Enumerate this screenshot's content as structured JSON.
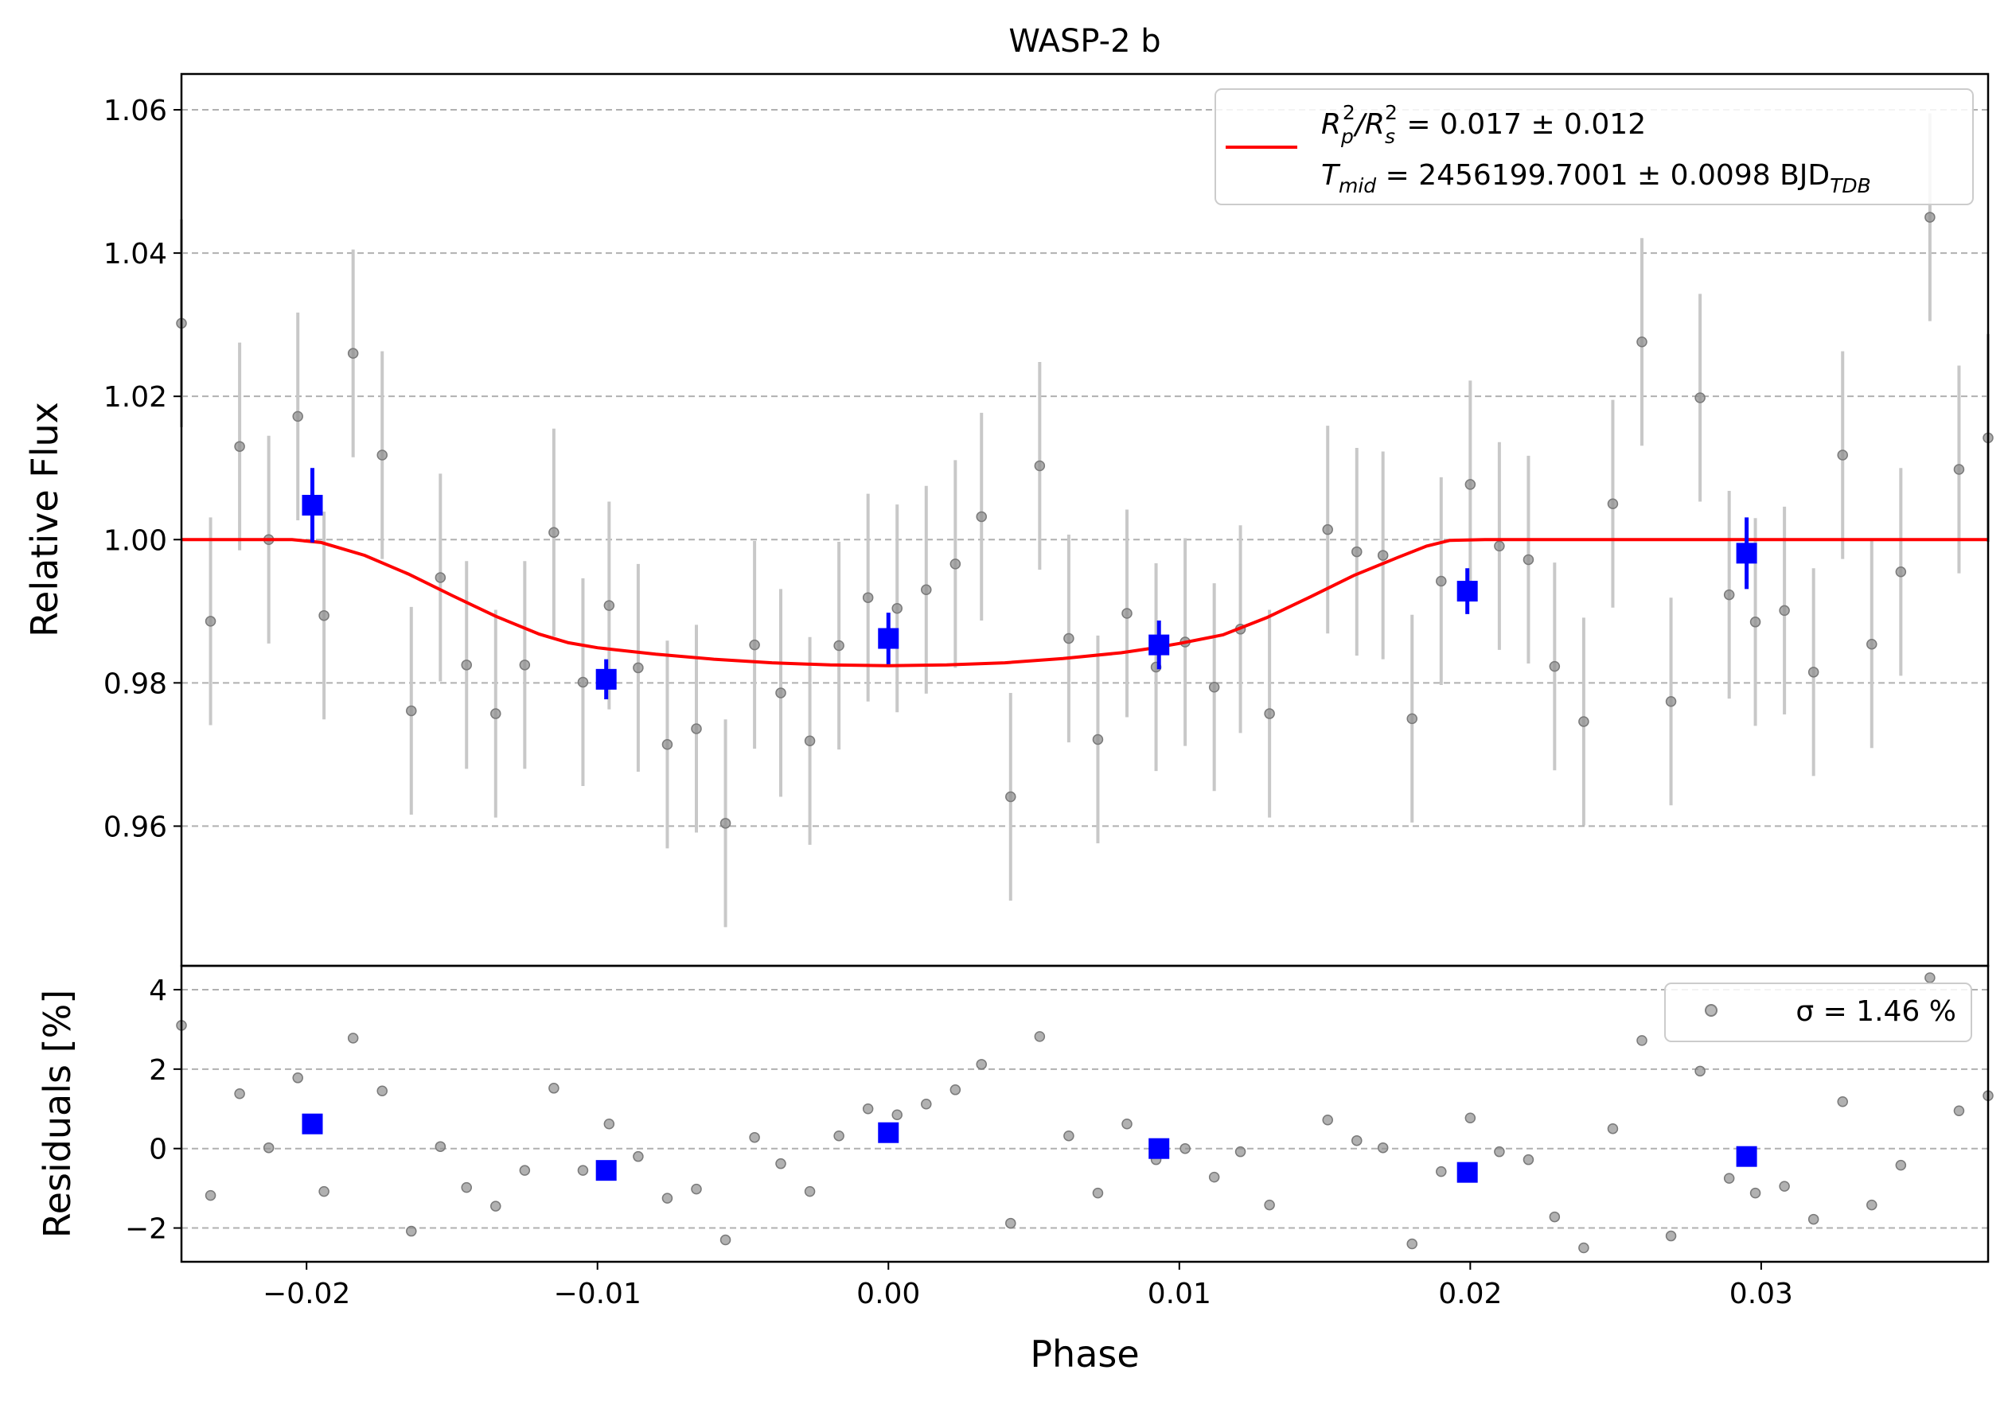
{
  "chart_data": [
    {
      "type": "scatter",
      "title": "WASP-2 b",
      "xlabel": "",
      "ylabel": "Relative Flux",
      "xlim": [
        -0.0243,
        0.0378
      ],
      "ylim": [
        0.9405,
        1.065
      ],
      "grid": "horizontal dashed",
      "legend_position": "top-right",
      "legend": {
        "line1": {
          "prefix": "R",
          "sub1": "p",
          "sup1": "2",
          "slash": "/R",
          "sub2": "s",
          "sup2": "2",
          "rest": " = 0.017 ± 0.012"
        },
        "line2": {
          "prefix": "T",
          "sub1": "mid",
          "rest": " = 2456199.7001 ± 0.0098 BJD",
          "sub2": "TDB"
        }
      },
      "yticks": [
        {
          "value": 0.96,
          "label": "0.96"
        },
        {
          "value": 0.98,
          "label": "0.98"
        },
        {
          "value": 1.0,
          "label": "1.00"
        },
        {
          "value": 1.02,
          "label": "1.02"
        },
        {
          "value": 1.04,
          "label": "1.04"
        },
        {
          "value": 1.06,
          "label": "1.06"
        }
      ],
      "series": [
        {
          "style": "gray points with error bars",
          "color": "#808080",
          "error": 0.0145,
          "x": [
            -0.0243,
            -0.0233,
            -0.0223,
            -0.0213,
            -0.0203,
            -0.0194,
            -0.0184,
            -0.0174,
            -0.0164,
            -0.0154,
            -0.0145,
            -0.0135,
            -0.0125,
            -0.0115,
            -0.0105,
            -0.0096,
            -0.0086,
            -0.0076,
            -0.0066,
            -0.0056,
            -0.0046,
            -0.0037,
            -0.0027,
            -0.0017,
            -0.0007,
            0.0003,
            0.0013,
            0.0023,
            0.0032,
            0.0042,
            0.0052,
            0.0062,
            0.0072,
            0.0082,
            0.0092,
            0.0102,
            0.0112,
            0.0121,
            0.0131,
            0.0151,
            0.0161,
            0.017,
            0.018,
            0.019,
            0.02,
            0.021,
            0.022,
            0.0229,
            0.0239,
            0.0249,
            0.0259,
            0.0269,
            0.0279,
            0.0289,
            0.0298,
            0.0308,
            0.0318,
            0.0328,
            0.0338,
            0.0348,
            0.0358,
            0.0368,
            0.0378
          ],
          "y": [
            1.0302,
            0.9886,
            1.013,
            1.0,
            1.0172,
            0.9894,
            1.026,
            1.0118,
            0.9761,
            0.9947,
            0.9825,
            0.9757,
            0.9825,
            1.001,
            0.9801,
            0.9908,
            0.9821,
            0.9714,
            0.9736,
            0.9604,
            0.9853,
            0.9786,
            0.9719,
            0.9852,
            0.9919,
            0.9904,
            0.993,
            0.9966,
            1.0032,
            0.9641,
            1.0103,
            0.9862,
            0.9721,
            0.9897,
            0.9822,
            0.9857,
            0.9794,
            0.9875,
            0.9757,
            1.0014,
            0.9983,
            0.9978,
            0.975,
            0.9942,
            1.0077,
            0.9991,
            0.9972,
            0.9823,
            0.9746,
            1.005,
            1.0276,
            0.9774,
            1.0198,
            0.9923,
            0.9885,
            0.9901,
            0.9815,
            1.0118,
            0.9854,
            0.9955,
            1.045,
            1.0098,
            1.0142
          ]
        },
        {
          "style": "blue binned squares with error bars",
          "color": "#0000ff",
          "x": [
            -0.0198,
            -0.0097,
            0.0,
            0.0093,
            0.0199,
            0.0295
          ],
          "y": [
            1.0048,
            0.9805,
            0.9862,
            0.9853,
            0.9928,
            0.9981
          ],
          "error": [
            0.0052,
            0.0028,
            0.0036,
            0.0034,
            0.0032,
            0.005
          ]
        },
        {
          "style": "red model line",
          "color": "#ff0000",
          "x": [
            -0.0243,
            -0.0205,
            -0.0195,
            -0.018,
            -0.0165,
            -0.015,
            -0.0135,
            -0.012,
            -0.011,
            -0.01,
            -0.008,
            -0.006,
            -0.004,
            -0.002,
            0.0,
            0.002,
            0.004,
            0.006,
            0.008,
            0.009,
            0.01,
            0.0115,
            0.013,
            0.0145,
            0.016,
            0.0175,
            0.0185,
            0.0193,
            0.0205,
            0.0378
          ],
          "y": [
            1.0,
            1.0,
            0.9996,
            0.9978,
            0.9952,
            0.9922,
            0.9893,
            0.9868,
            0.9856,
            0.9849,
            0.984,
            0.9833,
            0.9828,
            0.9825,
            0.9824,
            0.9825,
            0.9828,
            0.9834,
            0.9842,
            0.9848,
            0.9855,
            0.9867,
            0.9891,
            0.992,
            0.995,
            0.9975,
            0.9991,
            0.9999,
            1.0,
            1.0
          ]
        }
      ]
    },
    {
      "type": "scatter",
      "title": "",
      "xlabel": "Phase",
      "ylabel": "Residuals [%]",
      "xlim": [
        -0.0243,
        0.0378
      ],
      "ylim": [
        -2.85,
        4.6
      ],
      "grid": "horizontal dashed",
      "legend_position": "top-right",
      "legend": {
        "label": "σ = 1.46 %"
      },
      "xticks": [
        {
          "value": -0.02,
          "label": "−0.02"
        },
        {
          "value": -0.01,
          "label": "−0.01"
        },
        {
          "value": 0.0,
          "label": "0.00"
        },
        {
          "value": 0.01,
          "label": "0.01"
        },
        {
          "value": 0.02,
          "label": "0.02"
        },
        {
          "value": 0.03,
          "label": "0.03"
        }
      ],
      "yticks": [
        {
          "value": -2,
          "label": "−2"
        },
        {
          "value": 0,
          "label": "0"
        },
        {
          "value": 2,
          "label": "2"
        },
        {
          "value": 4,
          "label": "4"
        }
      ],
      "series": [
        {
          "style": "gray residual points",
          "color": "#808080",
          "x": [
            -0.0243,
            -0.0233,
            -0.0223,
            -0.0213,
            -0.0203,
            -0.0194,
            -0.0184,
            -0.0174,
            -0.0164,
            -0.0154,
            -0.0145,
            -0.0135,
            -0.0125,
            -0.0115,
            -0.0105,
            -0.0096,
            -0.0086,
            -0.0076,
            -0.0066,
            -0.0056,
            -0.0046,
            -0.0037,
            -0.0027,
            -0.0017,
            -0.0007,
            0.0003,
            0.0013,
            0.0023,
            0.0032,
            0.0042,
            0.0052,
            0.0062,
            0.0072,
            0.0082,
            0.0092,
            0.0102,
            0.0112,
            0.0121,
            0.0131,
            0.0151,
            0.0161,
            0.017,
            0.018,
            0.019,
            0.02,
            0.021,
            0.022,
            0.0229,
            0.0239,
            0.0249,
            0.0259,
            0.0269,
            0.0279,
            0.0289,
            0.0298,
            0.0308,
            0.0318,
            0.0328,
            0.0338,
            0.0348,
            0.0358,
            0.0368,
            0.0378
          ],
          "y": [
            3.1,
            -1.18,
            1.38,
            0.02,
            1.78,
            -1.08,
            2.78,
            1.45,
            -2.08,
            0.05,
            -0.98,
            -1.45,
            -0.55,
            1.52,
            -0.55,
            0.62,
            -0.2,
            -1.25,
            -1.02,
            -2.3,
            0.28,
            -0.38,
            -1.08,
            0.32,
            1.0,
            0.85,
            1.12,
            1.48,
            2.12,
            -1.88,
            2.82,
            0.32,
            -1.12,
            0.62,
            -0.28,
            0.0,
            -0.72,
            -0.08,
            -1.42,
            0.72,
            0.2,
            0.02,
            -2.4,
            -0.58,
            0.77,
            -0.08,
            -0.28,
            -1.72,
            -2.5,
            0.5,
            2.72,
            -2.2,
            1.95,
            -0.75,
            -1.12,
            -0.95,
            -1.78,
            1.18,
            -1.42,
            -0.42,
            4.3,
            0.95,
            1.33
          ]
        },
        {
          "style": "blue binned residual squares",
          "color": "#0000ff",
          "x": [
            -0.0198,
            -0.0097,
            0.0,
            0.0093,
            0.0199,
            0.0295
          ],
          "y": [
            0.62,
            -0.55,
            0.4,
            0.0,
            -0.6,
            -0.2
          ]
        }
      ]
    }
  ]
}
